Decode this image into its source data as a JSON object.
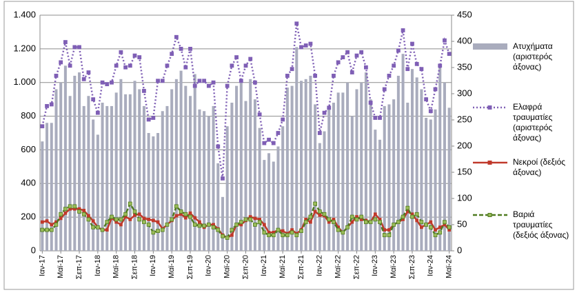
{
  "chart_data": {
    "type": "combo",
    "categories": [
      "Ιαν-17",
      null,
      null,
      null,
      "Μαϊ-17",
      null,
      null,
      null,
      "Σεπ-17",
      null,
      null,
      null,
      "Ιαν-18",
      null,
      null,
      null,
      "Μαϊ-18",
      null,
      null,
      null,
      "Σεπ-18",
      null,
      null,
      null,
      "Ιαν-19",
      null,
      null,
      null,
      "Μαϊ-19",
      null,
      null,
      null,
      "Σεπ-19",
      null,
      null,
      null,
      "Ιαν-20",
      null,
      null,
      null,
      "Μαϊ-20",
      null,
      null,
      null,
      "Σεπ-20",
      null,
      null,
      null,
      "Ιαν-21",
      null,
      null,
      null,
      "Μαϊ-21",
      null,
      null,
      null,
      "Σεπ-21",
      null,
      null,
      null,
      "Ιαν-22",
      null,
      null,
      null,
      "Μαϊ-22",
      null,
      null,
      null,
      "Σεπ-22",
      null,
      null,
      null,
      "Ιαν-23",
      null,
      null,
      null,
      "Μαϊ-23",
      null,
      null,
      null,
      "Σεπ-23",
      null,
      null,
      null,
      "Ιαν-24",
      null,
      null,
      null,
      "Μαϊ-24"
    ],
    "series": [
      {
        "name": "Ατυχήματα (αριστερός άξονας)",
        "type": "bar",
        "color": "#a9acbd",
        "values": [
          650,
          760,
          760,
          960,
          1000,
          1100,
          920,
          1040,
          1060,
          860,
          920,
          780,
          690,
          880,
          860,
          860,
          940,
          1020,
          930,
          930,
          1010,
          960,
          860,
          700,
          680,
          700,
          830,
          860,
          960,
          1020,
          1070,
          980,
          920,
          1050,
          840,
          830,
          800,
          860,
          520,
          320,
          740,
          880,
          980,
          1010,
          890,
          1020,
          900,
          730,
          540,
          580,
          530,
          620,
          740,
          970,
          980,
          1210,
          1010,
          1020,
          1040,
          870,
          640,
          710,
          840,
          880,
          940,
          940,
          1000,
          800,
          960,
          1000,
          1060,
          900,
          720,
          660,
          860,
          870,
          900,
          1040,
          1170,
          880,
          1080,
          1030,
          960,
          790,
          780,
          840,
          1100,
          1000,
          850
        ]
      },
      {
        "name": "Ελαφρά τραυματίες (αριστερός άξονας)",
        "type": "line",
        "dash": "dotted",
        "color": "#7f5fb5",
        "values": [
          740,
          860,
          870,
          1040,
          1120,
          1240,
          1100,
          1210,
          1210,
          1020,
          1060,
          900,
          820,
          1000,
          990,
          1000,
          1100,
          1180,
          1090,
          1100,
          1160,
          1150,
          950,
          780,
          790,
          1010,
          1010,
          1100,
          1170,
          1270,
          1200,
          1090,
          1200,
          980,
          1010,
          1010,
          980,
          1000,
          620,
          430,
          980,
          1100,
          1150,
          1010,
          1100,
          1140,
          1000,
          810,
          640,
          660,
          640,
          700,
          780,
          1040,
          1080,
          1350,
          1210,
          1220,
          1230,
          1040,
          700,
          820,
          850,
          1040,
          1120,
          1150,
          1180,
          1060,
          1160,
          1180,
          1090,
          880,
          790,
          790,
          960,
          1040,
          1100,
          1190,
          1310,
          1080,
          1230,
          1110,
          1080,
          900,
          830,
          960,
          1100,
          1250,
          1170
        ]
      },
      {
        "name": "Νεκροί (δεξιός άξονας)",
        "type": "line",
        "dash": "solid",
        "axis": "y2",
        "color": "#c0392b",
        "values": [
          55,
          57,
          50,
          55,
          62,
          72,
          80,
          80,
          80,
          77,
          67,
          57,
          45,
          40,
          40,
          63,
          55,
          50,
          65,
          60,
          68,
          70,
          62,
          60,
          58,
          55,
          42,
          50,
          58,
          67,
          70,
          63,
          72,
          63,
          55,
          45,
          50,
          50,
          42,
          30,
          25,
          30,
          50,
          50,
          58,
          65,
          62,
          60,
          50,
          35,
          35,
          40,
          38,
          33,
          40,
          33,
          40,
          60,
          55,
          75,
          68,
          67,
          55,
          60,
          45,
          35,
          45,
          55,
          65,
          60,
          58,
          55,
          70,
          60,
          40,
          40,
          50,
          55,
          60,
          75,
          70,
          58,
          45,
          50,
          55,
          40,
          45,
          50,
          40
        ]
      },
      {
        "name": "Βαριά τραυματίες (δεξιός άξονας)",
        "type": "line",
        "dash": "dashed",
        "axis": "y2",
        "color": "#4e7a1f",
        "values": [
          40,
          40,
          40,
          50,
          70,
          80,
          85,
          85,
          75,
          70,
          60,
          45,
          45,
          40,
          55,
          65,
          60,
          60,
          70,
          90,
          75,
          60,
          55,
          50,
          35,
          38,
          40,
          50,
          60,
          85,
          75,
          70,
          65,
          50,
          48,
          48,
          50,
          45,
          40,
          28,
          25,
          40,
          50,
          55,
          60,
          60,
          50,
          55,
          35,
          30,
          30,
          40,
          30,
          30,
          35,
          30,
          38,
          55,
          65,
          90,
          75,
          70,
          60,
          55,
          40,
          35,
          45,
          65,
          60,
          65,
          55,
          55,
          60,
          55,
          30,
          30,
          50,
          55,
          65,
          82,
          65,
          70,
          55,
          50,
          45,
          30,
          35,
          55,
          45
        ]
      }
    ],
    "ylim": [
      0,
      1400
    ],
    "yticks": [
      0,
      200,
      400,
      600,
      800,
      {
        "value": 1000,
        "label": "1.000"
      },
      {
        "value": 1200,
        "label": "1.200"
      },
      {
        "value": 1400,
        "label": "1.400"
      }
    ],
    "y2lim": [
      0,
      450
    ],
    "y2ticks": [
      0,
      50,
      100,
      150,
      200,
      250,
      300,
      350,
      400,
      450
    ],
    "grid": true,
    "legend": "right"
  }
}
